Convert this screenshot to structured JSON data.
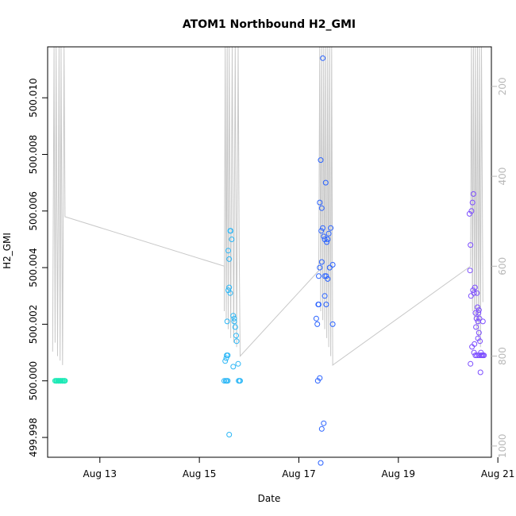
{
  "chart_data": {
    "type": "scatter",
    "title": "ATOM1 Northbound H2_GMI",
    "xlabel": "Date",
    "ylabel": "H2_GMI",
    "x_ticks": [
      {
        "label": "Aug 13",
        "day": 13
      },
      {
        "label": "Aug 15",
        "day": 15
      },
      {
        "label": "Aug 17",
        "day": 17
      },
      {
        "label": "Aug 19",
        "day": 19
      },
      {
        "label": "Aug 21",
        "day": 21
      }
    ],
    "xlim_days": [
      11.95,
      20.87
    ],
    "ylim": [
      499.9973,
      500.0118
    ],
    "y_ticks": [
      {
        "label": "499.998",
        "value": 499.998
      },
      {
        "label": "500.000",
        "value": 500.0
      },
      {
        "label": "500.002",
        "value": 500.002
      },
      {
        "label": "500.004",
        "value": 500.004
      },
      {
        "label": "500.006",
        "value": 500.006
      },
      {
        "label": "500.008",
        "value": 500.008
      },
      {
        "label": "500.010",
        "value": 500.01
      }
    ],
    "right_axis": {
      "ylim": [
        1025,
        112
      ],
      "ticks": [
        {
          "label": "200",
          "value": 200
        },
        {
          "label": "400",
          "value": 400
        },
        {
          "label": "600",
          "value": 600
        },
        {
          "label": "800",
          "value": 800
        },
        {
          "label": "1000",
          "value": 1000
        }
      ]
    },
    "depth_track": [
      [
        12.05,
        790
      ],
      [
        12.08,
        112
      ],
      [
        12.1,
        770
      ],
      [
        12.12,
        112
      ],
      [
        12.15,
        800
      ],
      [
        12.18,
        112
      ],
      [
        12.2,
        810
      ],
      [
        12.22,
        112
      ],
      [
        12.25,
        820
      ],
      [
        12.28,
        112
      ],
      [
        12.3,
        490
      ],
      [
        15.5,
        600
      ],
      [
        15.5,
        700
      ],
      [
        15.52,
        112
      ],
      [
        15.54,
        720
      ],
      [
        15.56,
        112
      ],
      [
        15.58,
        740
      ],
      [
        15.6,
        112
      ],
      [
        15.63,
        760
      ],
      [
        15.66,
        112
      ],
      [
        15.69,
        770
      ],
      [
        15.72,
        112
      ],
      [
        15.75,
        780
      ],
      [
        15.78,
        112
      ],
      [
        15.8,
        560
      ],
      [
        15.82,
        800
      ],
      [
        17.4,
        610
      ],
      [
        17.42,
        112
      ],
      [
        17.44,
        700
      ],
      [
        17.46,
        112
      ],
      [
        17.48,
        720
      ],
      [
        17.5,
        112
      ],
      [
        17.52,
        740
      ],
      [
        17.54,
        112
      ],
      [
        17.56,
        760
      ],
      [
        17.58,
        112
      ],
      [
        17.6,
        780
      ],
      [
        17.62,
        112
      ],
      [
        17.64,
        800
      ],
      [
        17.66,
        112
      ],
      [
        17.68,
        820
      ],
      [
        20.45,
        600
      ],
      [
        20.47,
        112
      ],
      [
        20.49,
        700
      ],
      [
        20.51,
        112
      ],
      [
        20.53,
        720
      ],
      [
        20.55,
        112
      ],
      [
        20.57,
        740
      ],
      [
        20.59,
        112
      ],
      [
        20.61,
        760
      ],
      [
        20.63,
        112
      ],
      [
        20.65,
        780
      ],
      [
        20.67,
        112
      ],
      [
        20.7,
        680
      ]
    ],
    "series": [
      {
        "color": "#1de9b6",
        "points": [
          [
            12.1,
            500.0
          ],
          [
            12.12,
            500.0
          ],
          [
            12.14,
            500.0
          ],
          [
            12.16,
            500.0
          ],
          [
            12.18,
            500.0
          ],
          [
            12.2,
            500.0
          ],
          [
            12.22,
            500.0
          ],
          [
            12.24,
            500.0
          ],
          [
            12.26,
            500.0
          ],
          [
            12.28,
            500.0
          ],
          [
            12.3,
            500.0
          ],
          [
            12.13,
            500.0
          ],
          [
            12.17,
            500.0
          ],
          [
            12.21,
            500.0
          ],
          [
            12.25,
            500.0
          ],
          [
            12.29,
            500.0
          ]
        ]
      },
      {
        "color": "#29b6f6",
        "points": [
          [
            15.5,
            500.0
          ],
          [
            15.53,
            500.0
          ],
          [
            15.55,
            500.0
          ],
          [
            15.57,
            500.0
          ],
          [
            15.79,
            500.0
          ],
          [
            15.81,
            500.0
          ],
          [
            15.82,
            500.0
          ],
          [
            15.52,
            500.0007
          ],
          [
            15.55,
            500.0009
          ],
          [
            15.57,
            500.0009
          ],
          [
            15.54,
            500.0008
          ],
          [
            15.56,
            500.0021
          ],
          [
            15.58,
            500.0032
          ],
          [
            15.6,
            500.0033
          ],
          [
            15.62,
            500.0031
          ],
          [
            15.6,
            500.0043
          ],
          [
            15.62,
            500.0053
          ],
          [
            15.63,
            500.0053
          ],
          [
            15.65,
            500.005
          ],
          [
            15.58,
            500.0046
          ],
          [
            15.68,
            500.0023
          ],
          [
            15.7,
            500.0022
          ],
          [
            15.7,
            500.0021
          ],
          [
            15.72,
            500.0019
          ],
          [
            15.74,
            500.0016
          ],
          [
            15.75,
            500.0014
          ],
          [
            15.68,
            500.0005
          ],
          [
            15.78,
            500.0006
          ],
          [
            15.6,
            499.9981
          ]
        ]
      },
      {
        "color": "#2962ff",
        "points": [
          [
            17.38,
            500.0
          ],
          [
            17.42,
            500.0001
          ],
          [
            17.46,
            499.9983
          ],
          [
            17.5,
            499.9985
          ],
          [
            17.44,
            499.9971
          ],
          [
            17.35,
            500.0022
          ],
          [
            17.37,
            500.002
          ],
          [
            17.39,
            500.0027
          ],
          [
            17.4,
            500.0037
          ],
          [
            17.42,
            500.004
          ],
          [
            17.46,
            500.0042
          ],
          [
            17.52,
            500.0037
          ],
          [
            17.55,
            500.0037
          ],
          [
            17.58,
            500.0036
          ],
          [
            17.45,
            500.0053
          ],
          [
            17.48,
            500.0054
          ],
          [
            17.5,
            500.0051
          ],
          [
            17.52,
            500.005
          ],
          [
            17.56,
            500.0049
          ],
          [
            17.6,
            500.0052
          ],
          [
            17.64,
            500.0054
          ],
          [
            17.68,
            500.0041
          ],
          [
            17.62,
            500.004
          ],
          [
            17.42,
            500.0063
          ],
          [
            17.46,
            500.0061
          ],
          [
            17.54,
            500.007
          ],
          [
            17.44,
            500.0078
          ],
          [
            17.48,
            500.0114
          ],
          [
            17.52,
            500.003
          ],
          [
            17.55,
            500.0027
          ],
          [
            17.68,
            500.002
          ],
          [
            17.4,
            500.0027
          ],
          [
            17.58,
            500.005
          ]
        ]
      },
      {
        "color": "#7c4dff",
        "points": [
          [
            20.43,
            500.0059
          ],
          [
            20.45,
            500.0048
          ],
          [
            20.47,
            500.006
          ],
          [
            20.49,
            500.0063
          ],
          [
            20.51,
            500.0066
          ],
          [
            20.44,
            500.0039
          ],
          [
            20.46,
            500.003
          ],
          [
            20.5,
            500.0032
          ],
          [
            20.52,
            500.0031
          ],
          [
            20.54,
            500.0033
          ],
          [
            20.58,
            500.0031
          ],
          [
            20.55,
            500.0024
          ],
          [
            20.57,
            500.0022
          ],
          [
            20.59,
            500.0026
          ],
          [
            20.61,
            500.0024
          ],
          [
            20.63,
            500.0022
          ],
          [
            20.62,
            500.0025
          ],
          [
            20.56,
            500.0019
          ],
          [
            20.6,
            500.0021
          ],
          [
            20.62,
            500.0017
          ],
          [
            20.64,
            500.0014
          ],
          [
            20.66,
            500.001
          ],
          [
            20.7,
            500.0021
          ],
          [
            20.52,
            500.001
          ],
          [
            20.55,
            500.0009
          ],
          [
            20.58,
            500.0009
          ],
          [
            20.62,
            500.0009
          ],
          [
            20.66,
            500.0009
          ],
          [
            20.68,
            500.0009
          ],
          [
            20.7,
            500.0009
          ],
          [
            20.72,
            500.0009
          ],
          [
            20.53,
            500.0013
          ],
          [
            20.6,
            500.0015
          ],
          [
            20.65,
            500.0003
          ],
          [
            20.45,
            500.0006
          ],
          [
            20.48,
            500.0012
          ]
        ]
      }
    ]
  }
}
